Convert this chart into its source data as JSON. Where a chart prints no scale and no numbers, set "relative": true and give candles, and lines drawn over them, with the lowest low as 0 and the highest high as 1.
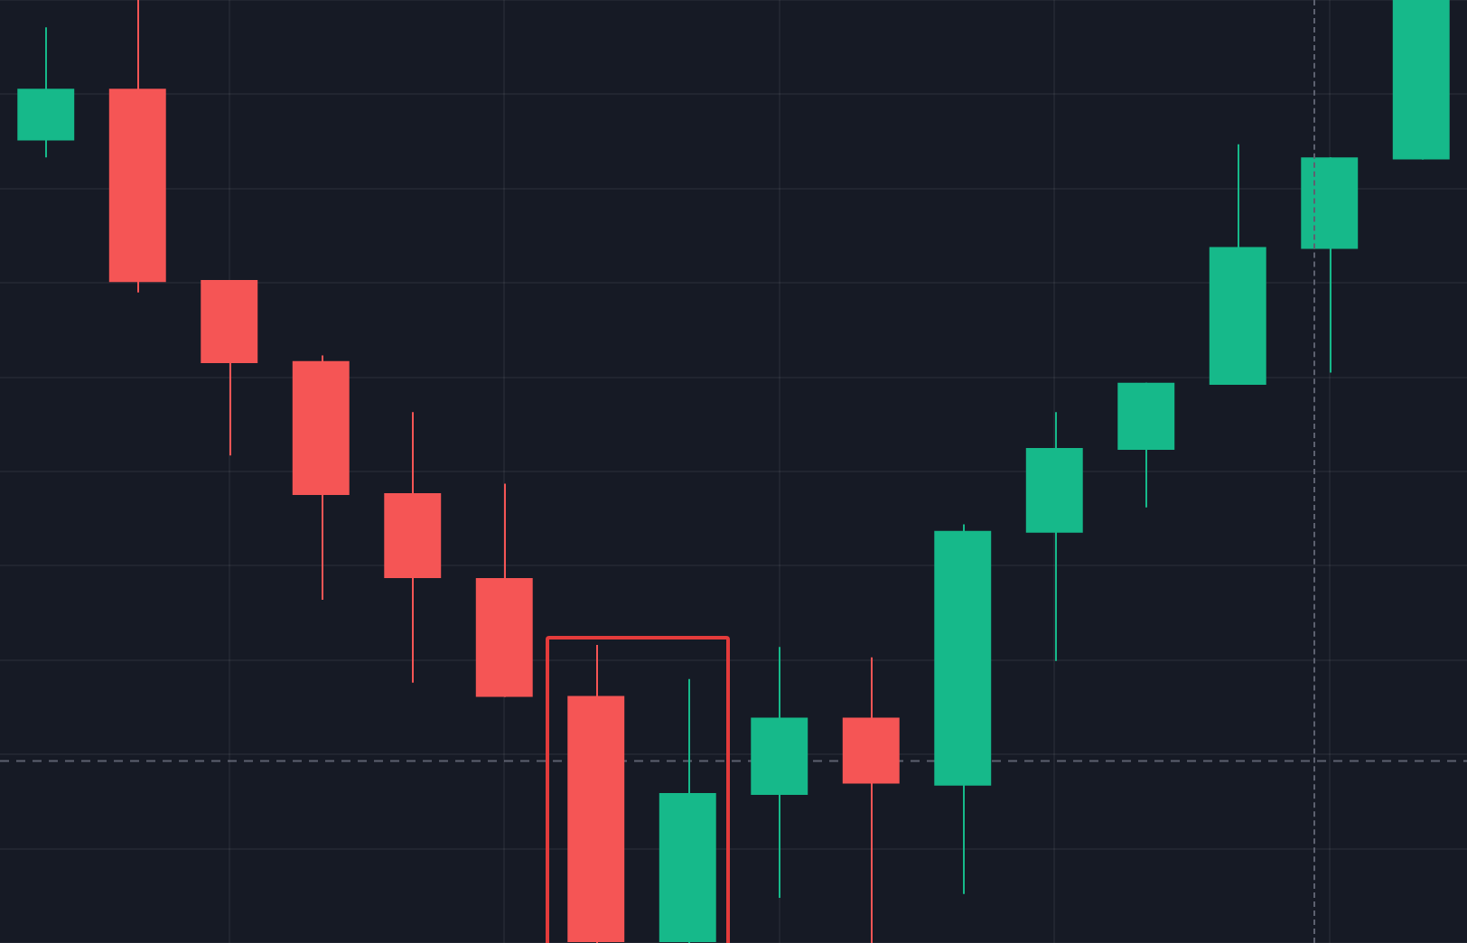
{
  "chart_data": {
    "type": "candlestick",
    "relative": true,
    "grid": true,
    "categories": [
      null,
      null,
      null,
      null,
      null,
      null,
      null,
      null,
      null,
      null,
      null,
      null,
      null,
      null,
      null,
      null
    ],
    "ohlc": [
      [
        0.851,
        0.971,
        0.833,
        0.906
      ],
      [
        0.906,
        1.0,
        0.69,
        0.701
      ],
      [
        0.703,
        0.703,
        0.517,
        0.615
      ],
      [
        0.617,
        0.623,
        0.364,
        0.475
      ],
      [
        0.477,
        0.563,
        0.276,
        0.387
      ],
      [
        0.387,
        0.487,
        0.261,
        0.261
      ],
      [
        0.262,
        0.316,
        0.0,
        0.0
      ],
      [
        0.0,
        0.28,
        0.0,
        0.159
      ],
      [
        0.157,
        0.314,
        0.048,
        0.239
      ],
      [
        0.239,
        0.303,
        0.0,
        0.169
      ],
      [
        0.167,
        0.444,
        0.052,
        0.437
      ],
      [
        0.435,
        0.563,
        0.299,
        0.525
      ],
      [
        0.523,
        0.594,
        0.462,
        0.594
      ],
      [
        0.592,
        0.847,
        0.592,
        0.738
      ],
      [
        0.736,
        0.833,
        0.605,
        0.833
      ],
      [
        0.831,
        1.0,
        0.831,
        1.0
      ]
    ],
    "colors": [
      "#16b98a",
      "#f55555",
      "#f55555",
      "#f55555",
      "#f55555",
      "#f55555",
      "#f55555",
      "#16b98a",
      "#16b98a",
      "#f55555",
      "#16b98a",
      "#16b98a",
      "#16b98a",
      "#16b98a",
      "#16b98a",
      "#16b98a"
    ],
    "ref_lines": [
      {
        "axis": "y",
        "value": 0.193,
        "color": "#5d6170",
        "line_style": "dashed"
      }
    ]
  }
}
